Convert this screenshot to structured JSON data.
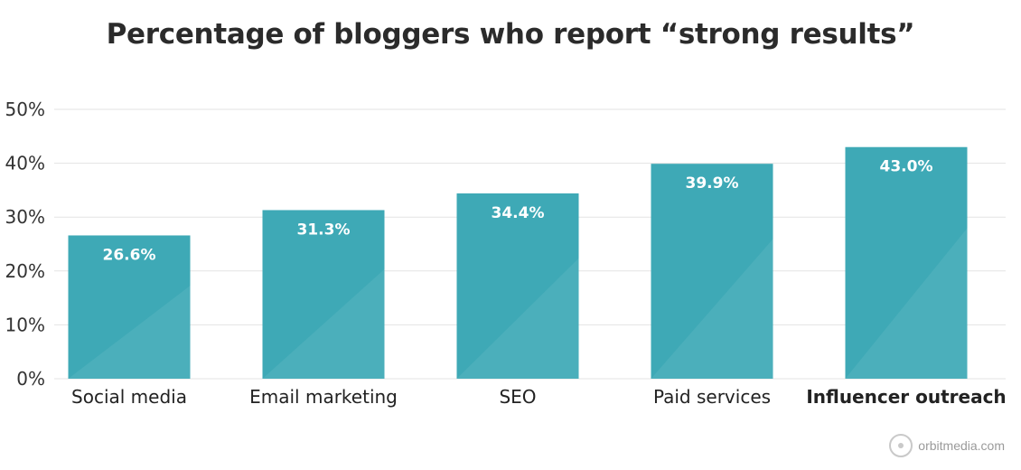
{
  "chart_data": {
    "type": "bar",
    "title": "Percentage of bloggers who report “strong results”",
    "categories": [
      "Social media",
      "Email marketing",
      "SEO",
      "Paid services",
      "Influencer outreach"
    ],
    "values": [
      26.6,
      31.3,
      34.4,
      39.9,
      43.0
    ],
    "data_labels": [
      "26.6%",
      "31.3%",
      "34.4%",
      "39.9%",
      "43.0%"
    ],
    "highlighted_category": "Influencer outreach",
    "yticks": [
      "0%",
      "10%",
      "20%",
      "30%",
      "40%",
      "50%"
    ],
    "ytick_values": [
      0,
      10,
      20,
      30,
      40,
      50
    ],
    "ylim": [
      0,
      50
    ],
    "xlabel": "",
    "ylabel": "",
    "grid": true,
    "legend": "none",
    "bar_color": "#3ea9b6"
  },
  "brand": {
    "text": "orbitmedia.com",
    "icon": "orbit-logo-icon"
  }
}
